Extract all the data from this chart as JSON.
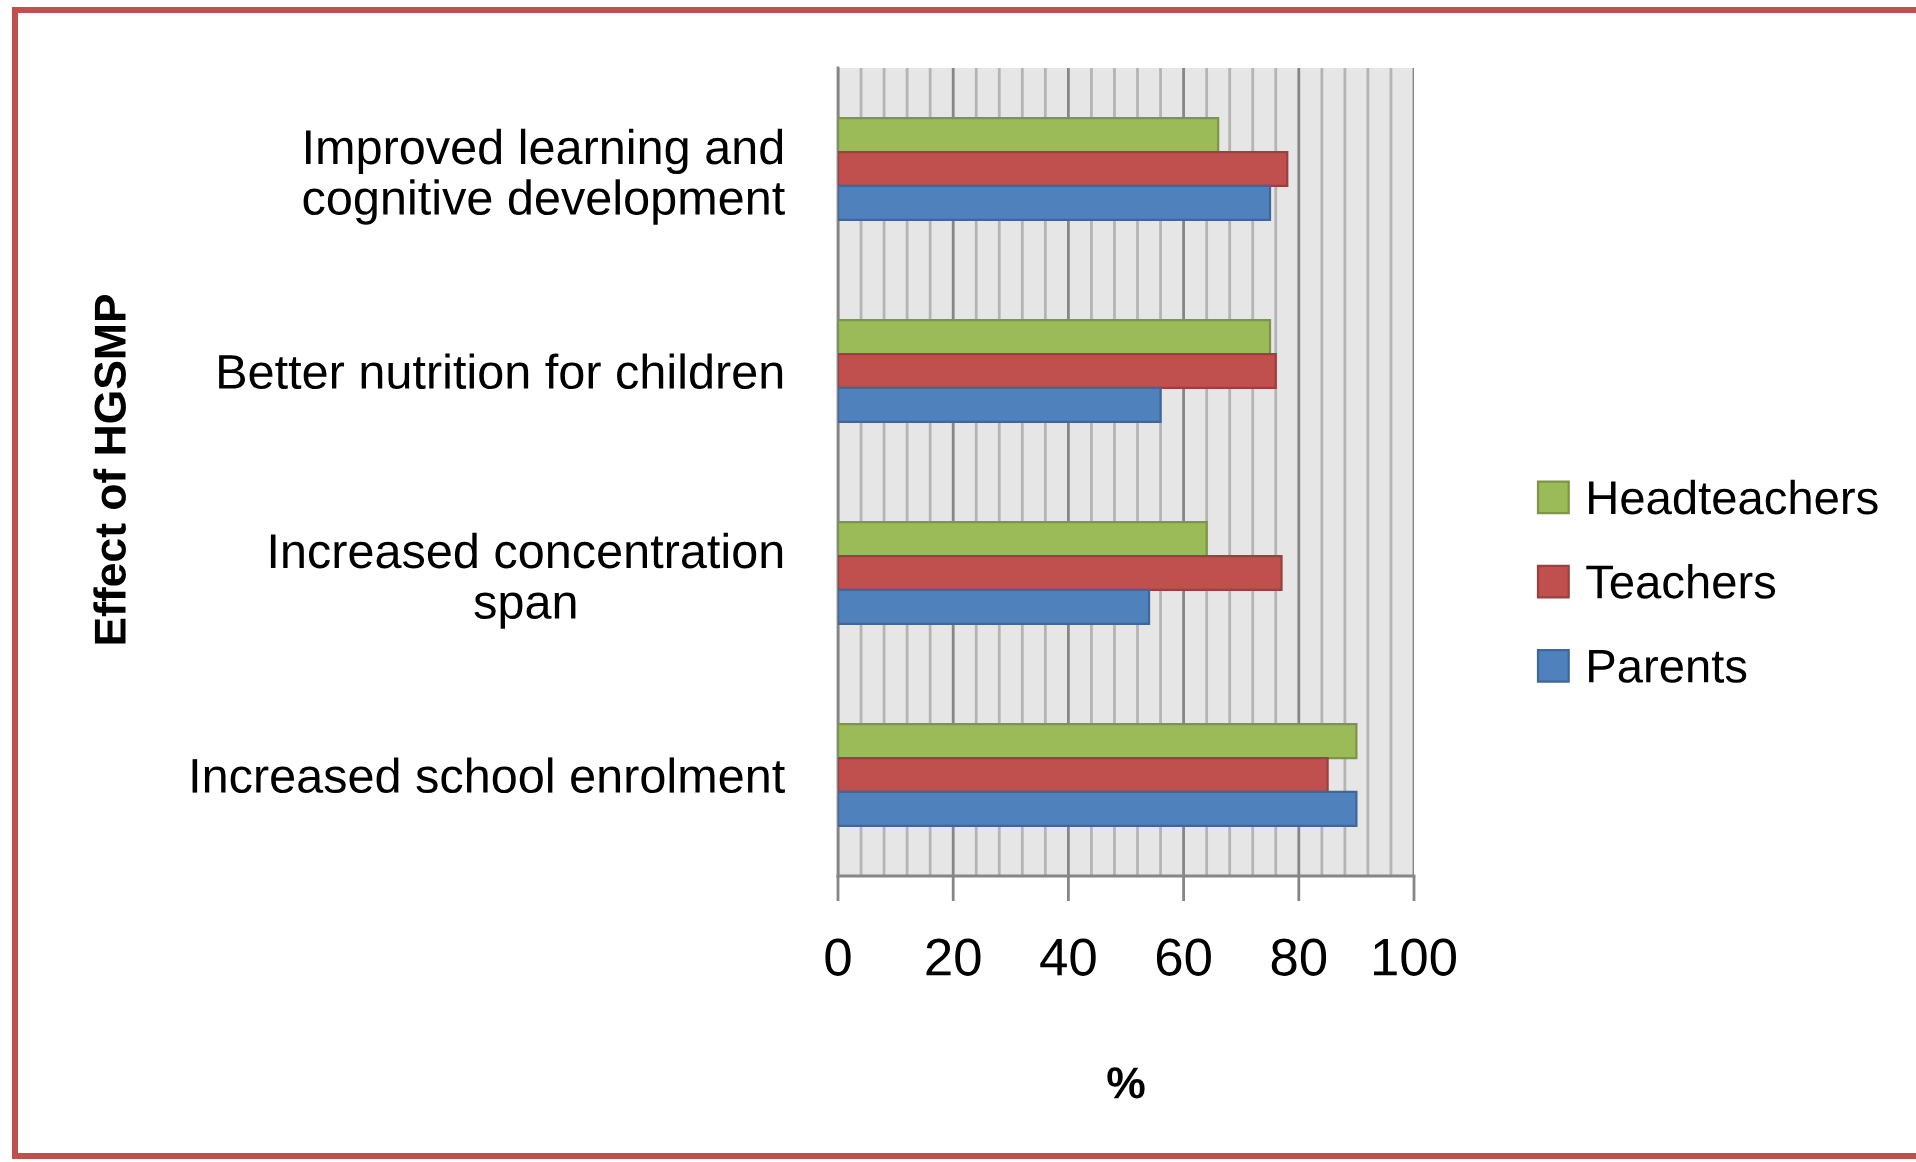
{
  "chart_data": {
    "type": "bar",
    "orientation": "horizontal",
    "ylabel": "Effect of HGSMP",
    "xlabel": "%",
    "categories": [
      "Improved learning and\ncognitive development",
      "Better nutrition for children",
      "Increased concentration\nspan",
      "Increased school enrolment"
    ],
    "series": [
      {
        "name": "Headteachers",
        "color": "#9bbb59",
        "values": [
          66,
          75,
          64,
          90
        ]
      },
      {
        "name": "Teachers",
        "color": "#c0504d",
        "values": [
          78,
          76,
          77,
          85
        ]
      },
      {
        "name": "Parents",
        "color": "#4f81bd",
        "values": [
          75,
          56,
          54,
          90
        ]
      }
    ],
    "xlim": [
      0,
      100
    ],
    "xticks": [
      0,
      {
        "value": 4,
        "label": null
      },
      {
        "value": 8,
        "label": null
      },
      {
        "value": 12,
        "label": null
      },
      {
        "value": 16,
        "label": null
      },
      20,
      {
        "value": 24,
        "label": null
      },
      {
        "value": 28,
        "label": null
      },
      {
        "value": 32,
        "label": null
      },
      {
        "value": 36,
        "label": null
      },
      40,
      {
        "value": 44,
        "label": null
      },
      {
        "value": 48,
        "label": null
      },
      {
        "value": 52,
        "label": null
      },
      {
        "value": 56,
        "label": null
      },
      60,
      {
        "value": 64,
        "label": null
      },
      {
        "value": 68,
        "label": null
      },
      {
        "value": 72,
        "label": null
      },
      {
        "value": 76,
        "label": null
      },
      80,
      {
        "value": 84,
        "label": null
      },
      {
        "value": 88,
        "label": null
      },
      {
        "value": 92,
        "label": null
      },
      {
        "value": 96,
        "label": null
      },
      100
    ],
    "grid": "x",
    "legend": "right"
  }
}
